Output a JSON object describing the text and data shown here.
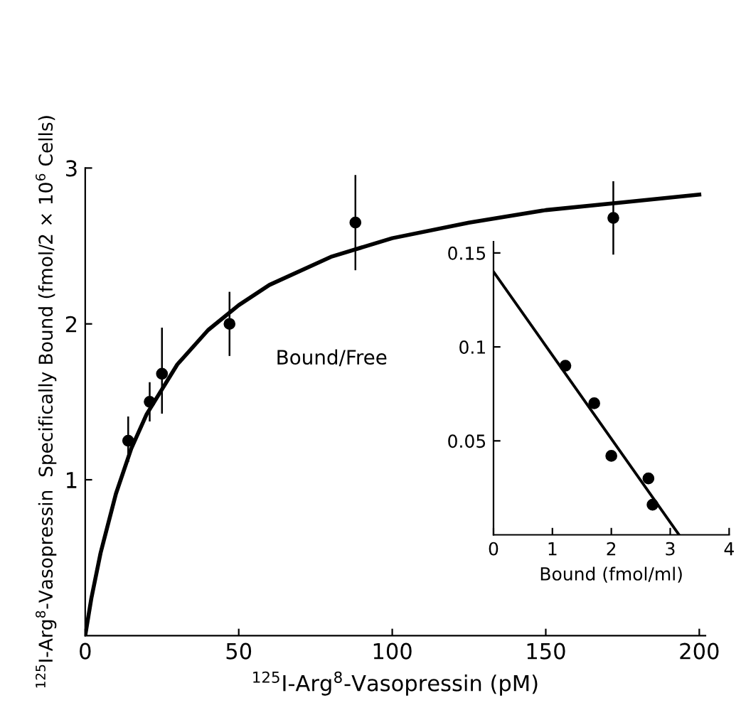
{
  "chart_data": [
    {
      "type": "scatter",
      "xlabel": "$^{125}$I-Arg$^{8}$-Vasopressin (pM)",
      "ylabel": "$^{125}$I-Arg$^{8}$-Vasopressin  Specifically Bound (fmol/2 × 10$^{6}$ Cells)",
      "xlim": [
        0,
        202
      ],
      "ylim": [
        0,
        3
      ],
      "xticks": [
        0,
        50,
        100,
        150,
        200
      ],
      "yticks": [
        1,
        2,
        3
      ],
      "grid": false,
      "series": [
        {
          "marker": "circle",
          "color": "#000000",
          "x": [
            14,
            21,
            25,
            47,
            88,
            172
          ],
          "values": [
            1.25,
            1.5,
            1.68,
            2.0,
            2.65,
            2.68
          ],
          "errors": [
            [
              1.12,
              1.4
            ],
            [
              1.38,
              1.62
            ],
            [
              1.43,
              1.97
            ],
            [
              1.8,
              2.2
            ],
            [
              2.35,
              2.95
            ],
            [
              2.45,
              2.91
            ]
          ]
        },
        {
          "type": "line",
          "color": "#000000",
          "line_style": "solid",
          "x": [
            0,
            2,
            5,
            10,
            15,
            20,
            30,
            40,
            50,
            60,
            80,
            100,
            125,
            150,
            175,
            200
          ],
          "values": [
            0,
            0.24,
            0.53,
            0.91,
            1.2,
            1.42,
            1.74,
            1.96,
            2.12,
            2.25,
            2.43,
            2.55,
            2.65,
            2.73,
            2.78,
            2.83
          ]
        }
      ]
    },
    {
      "type": "scatter",
      "xlabel": "Bound (fmol/ml)",
      "ylabel": "Bound/Free",
      "xlim": [
        0,
        4
      ],
      "ylim": [
        0,
        0.156
      ],
      "xticks": [
        0,
        1,
        2,
        3,
        4
      ],
      "yticks": [
        0.05,
        {
          "value": 0.1,
          "label": "0.1"
        },
        0.15
      ],
      "grid": false,
      "series": [
        {
          "marker": "circle",
          "color": "#000000",
          "x": [
            1.22,
            1.71,
            2.0,
            2.63,
            2.7
          ],
          "values": [
            0.09,
            0.07,
            0.042,
            0.03,
            0.016
          ]
        },
        {
          "type": "line",
          "color": "#000000",
          "line_style": "solid",
          "x": [
            0,
            3.15
          ],
          "values": [
            0.14,
            0
          ]
        }
      ]
    }
  ]
}
